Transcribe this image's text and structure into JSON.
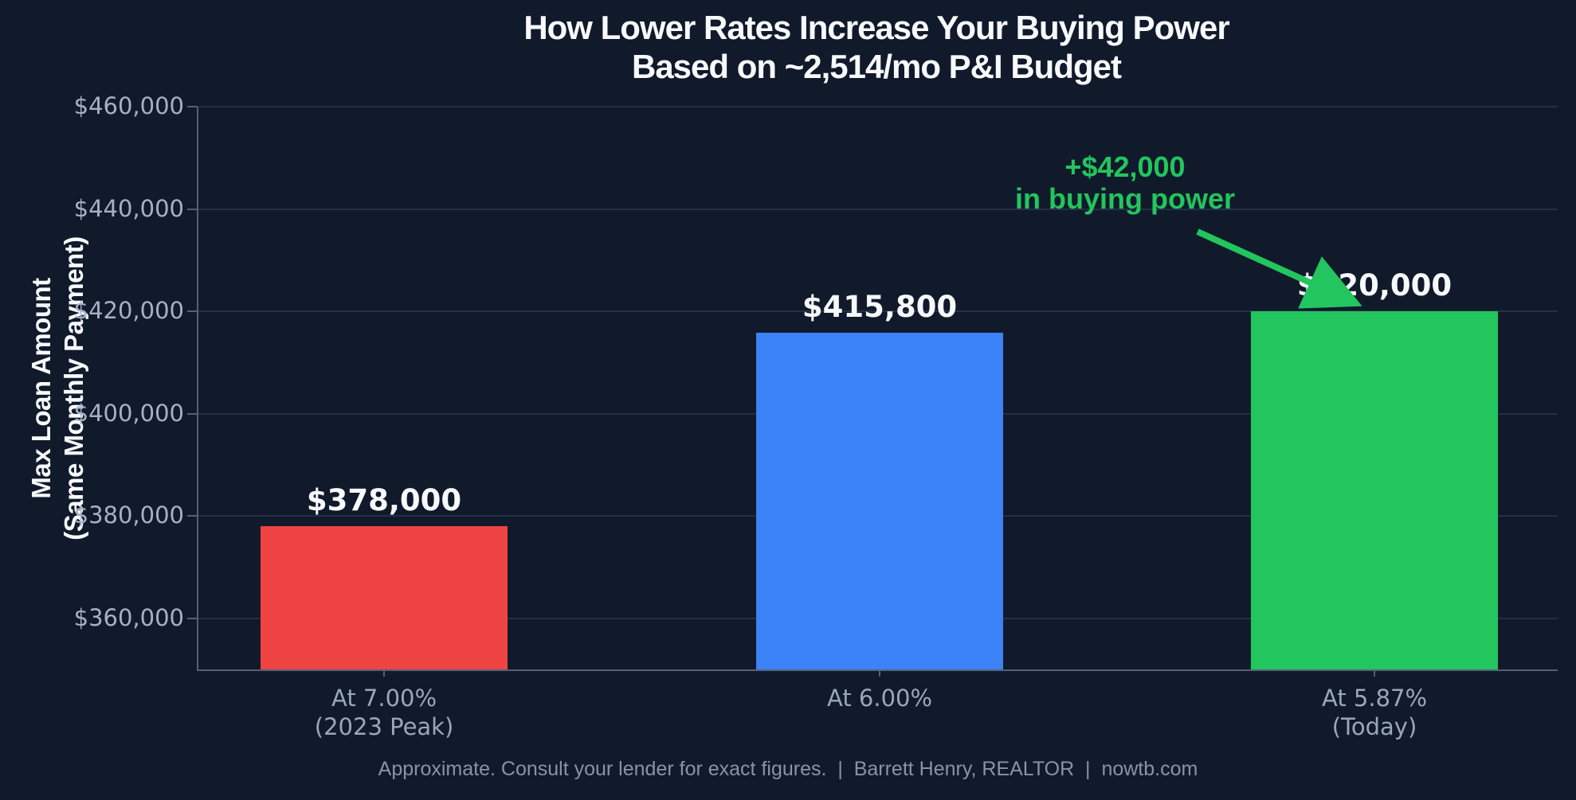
{
  "title": {
    "line1": "How Lower Rates Increase Your Buying Power",
    "line2": "Based on ~2,514/mo P&I Budget"
  },
  "y_axis": {
    "title_line1": "Max Loan Amount",
    "title_line2": "(Same Monthly Payment)"
  },
  "annotation": {
    "line1": "+$42,000",
    "line2": "in buying power"
  },
  "footer": {
    "text": "Approximate. Consult your lender for exact figures.  |  Barrett Henry, REALTOR  |  nowtb.com"
  },
  "colors": {
    "background": "#111a2b",
    "grid": "#252f45",
    "spine": "#546079",
    "tick_label": "#a6b1c5",
    "x_label": "#9aa6bb",
    "value_label": "#f7f9fc",
    "annotation_green": "#22c55e"
  },
  "chart_data": {
    "type": "bar",
    "title": "How Lower Rates Increase Your Buying Power\nBased on ~2,514/mo P&I Budget",
    "categories": [
      "At 7.00% (2023 Peak)",
      "At 6.00%",
      "At 5.87% (Today)"
    ],
    "category_label_lines": [
      [
        "At 7.00%",
        "(2023 Peak)"
      ],
      [
        "At 6.00%"
      ],
      [
        "At 5.87%",
        "(Today)"
      ]
    ],
    "values": [
      378000,
      415800,
      420000
    ],
    "value_labels": [
      "$378,000",
      "$415,800",
      "$420,000"
    ],
    "bar_colors": [
      "#ef4444",
      "#3b82f6",
      "#22c55e"
    ],
    "xlabel": "",
    "ylabel": "Max Loan Amount (Same Monthly Payment)",
    "ylim": [
      350000,
      460000
    ],
    "yticks": [
      360000,
      380000,
      400000,
      420000,
      440000,
      460000
    ],
    "ytick_labels": [
      "$360,000",
      "$380,000",
      "$400,000",
      "$420,000",
      "$440,000",
      "$460,000"
    ],
    "grid": true,
    "legend": false,
    "annotation": "+$42,000 in buying power (arrow pointing to third bar)"
  }
}
